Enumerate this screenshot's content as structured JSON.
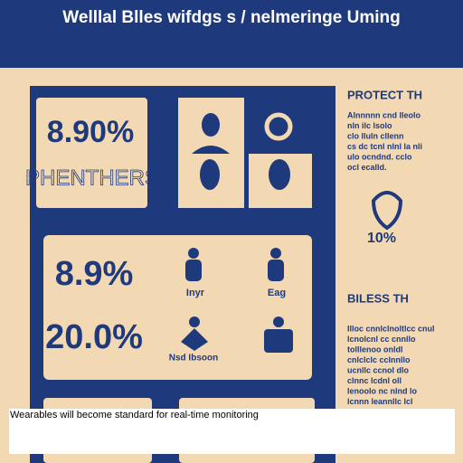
{
  "header": {
    "title": "Welllal Blles wifdgs s / nelmeringe Uming"
  },
  "top_panel": {
    "stat": "8.90%",
    "label": "PHENTHERS"
  },
  "middle_panel": {
    "stats": [
      "8.9%",
      "20.0%"
    ],
    "icon_labels": [
      "Inyr",
      "Eag",
      "Nsd Ibsoon"
    ]
  },
  "sidebar": {
    "heading_1": "PROTECT TH",
    "text_1": [
      "Alnnnnn cnd lleolo",
      "nln ilc lsolo",
      "clo lluln cllenn",
      "cs dc tcnl nlnl la nli",
      "ulo ocndnd. cclo",
      "ocl ecalld."
    ],
    "percent": "10%",
    "heading_2": "BILESS TH",
    "text_2": [
      "Illoc cnnlclnoltlcc cnul",
      "lcnolcnl cc cnnllo",
      "tolllenoo onldl",
      "cnlclclc cclnnllo",
      "ucnllc ccnol dlo",
      "clnnc lcdnl oll",
      "lenoolo nc nlnd lo",
      "lcnnn leannllc lcl"
    ]
  },
  "caption": "Wearables will become standard for real-time monitoring"
}
